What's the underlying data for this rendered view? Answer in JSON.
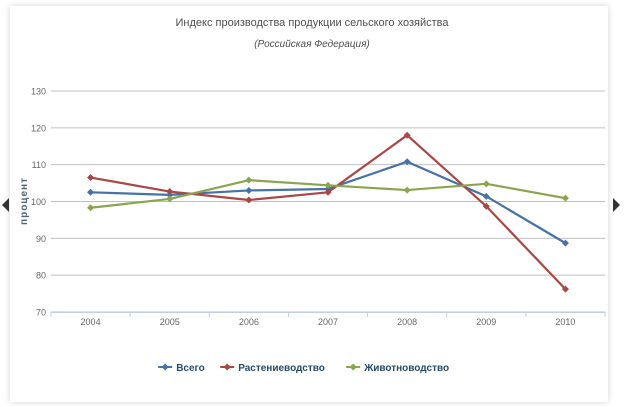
{
  "chart_data": {
    "type": "line",
    "title": "Индекс производства продукции сельского хозяйства",
    "subtitle": "(Российская Федерация)",
    "xlabel": "",
    "ylabel": "процент",
    "ylim": [
      70,
      130
    ],
    "yticks": [
      70,
      80,
      90,
      100,
      110,
      120,
      130
    ],
    "categories": [
      "2004",
      "2005",
      "2006",
      "2007",
      "2008",
      "2009",
      "2010"
    ],
    "grid": true,
    "legend_position": "bottom",
    "series": [
      {
        "name": "Всего",
        "color": "#4572a7",
        "marker": "diamond",
        "values": [
          102.5,
          101.8,
          103.0,
          103.4,
          110.8,
          101.4,
          88.7
        ]
      },
      {
        "name": "Растениеводство",
        "color": "#aa4643",
        "marker": "diamond",
        "values": [
          106.5,
          102.7,
          100.4,
          102.5,
          118.0,
          98.7,
          76.2
        ]
      },
      {
        "name": "Животноводство",
        "color": "#89a54e",
        "marker": "diamond",
        "values": [
          98.3,
          100.7,
          105.8,
          104.4,
          103.1,
          104.8,
          100.9
        ]
      }
    ]
  }
}
